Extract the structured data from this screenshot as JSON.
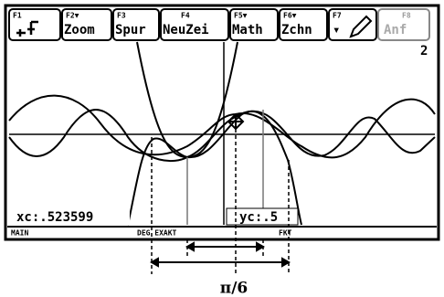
{
  "toolbar": [
    {
      "key": "F1"
    },
    {
      "key": "F2▼",
      "label": "Zoom"
    },
    {
      "key": "F3",
      "label": "Spur"
    },
    {
      "key": "F4",
      "label": "NeuZei"
    },
    {
      "key": "F5▼",
      "label": "Math"
    },
    {
      "key": "F6▼",
      "label": "Zchn"
    },
    {
      "key": "F7"
    },
    {
      "key": "F8",
      "label": "Anf"
    }
  ],
  "graph_number": "2",
  "readout": {
    "xc": "xc:.523599",
    "yc": "yc:.5"
  },
  "status": {
    "folder": "MAIN",
    "mode": "DEG EXAKT",
    "graph": "FKT"
  },
  "annotation": "π/6"
}
